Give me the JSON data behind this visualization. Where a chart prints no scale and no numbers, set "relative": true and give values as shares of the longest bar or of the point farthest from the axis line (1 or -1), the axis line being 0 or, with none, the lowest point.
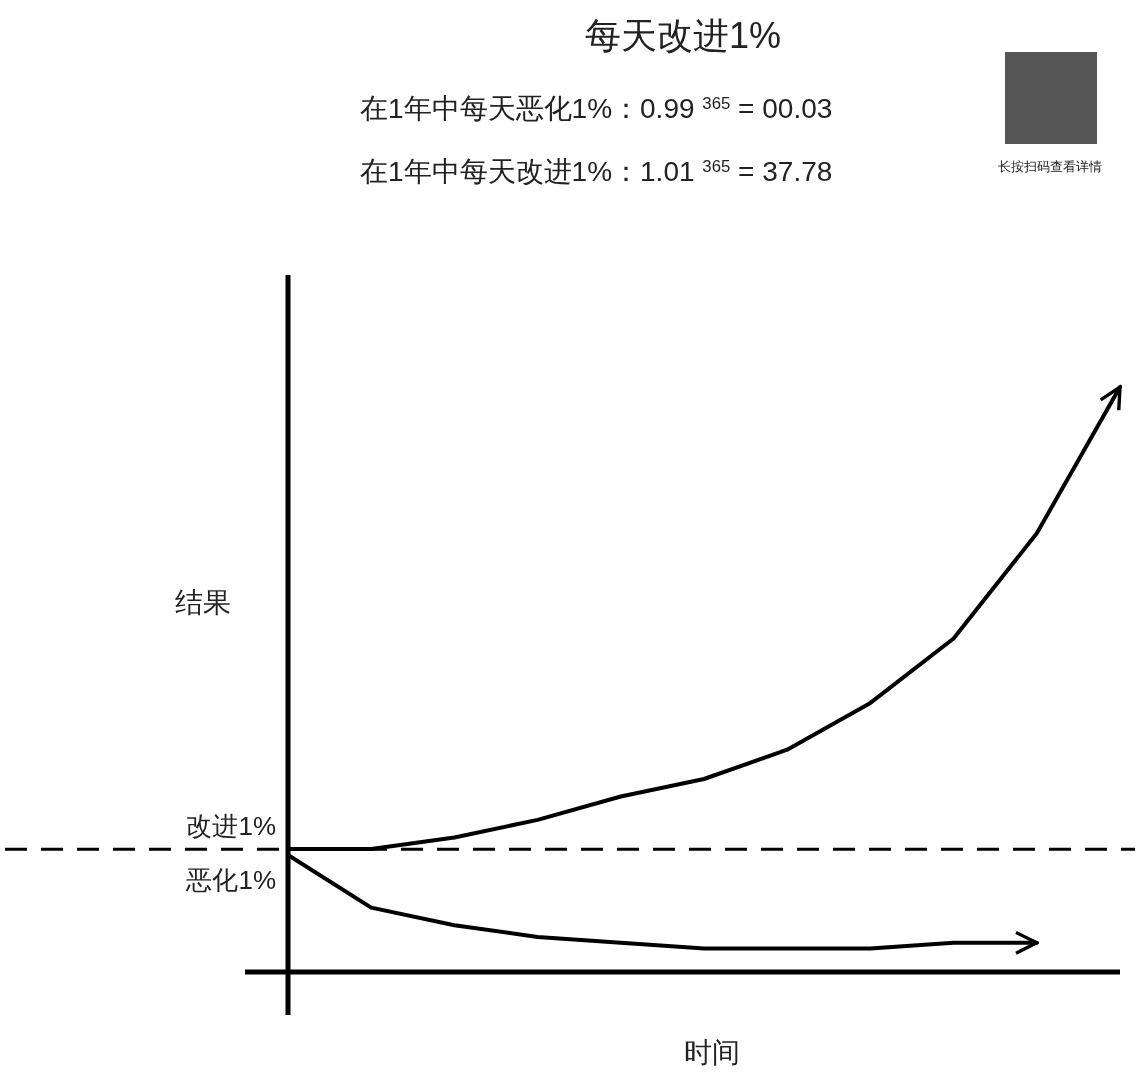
{
  "chart_data": {
    "type": "line",
    "title": "每天改进1%",
    "xlabel": "时间",
    "ylabel": "结果",
    "relative": true,
    "categories": [
      null,
      null,
      null,
      null,
      null,
      null,
      null,
      null,
      null,
      null,
      null
    ],
    "line_style": "solid",
    "annotations": [
      "在1年中每天恶化1%：0.99 $^{365}$ = 00.03",
      "在1年中每天改进1%：1.01 $^{365}$ = 37.78",
      "长按扫码查看详情"
    ],
    "series": [
      {
        "name": "改进1%",
        "color": "#000000",
        "values": [
          0.21,
          0.21,
          0.23,
          0.26,
          0.3,
          0.33,
          0.38,
          0.46,
          0.57,
          0.75,
          1.0
        ]
      },
      {
        "name": "恶化1%",
        "color": "#000000",
        "values": [
          0.2,
          0.11,
          0.08,
          0.06,
          0.05,
          0.04,
          0.04,
          0.04,
          0.05,
          0.05,
          null
        ]
      }
    ],
    "ref_lines": [
      {
        "axis": "y",
        "value": 0.21,
        "line_style": "dashed"
      }
    ]
  }
}
